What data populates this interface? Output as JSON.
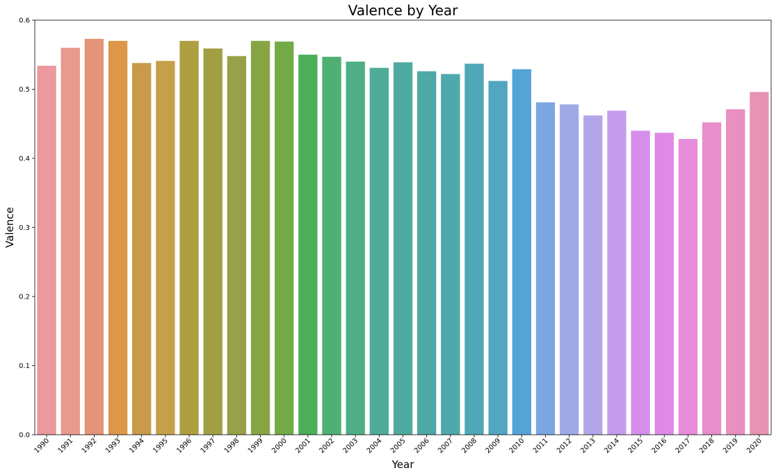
{
  "chart_data": {
    "type": "bar",
    "title": "Valence by Year",
    "xlabel": "Year",
    "ylabel": "Valence",
    "ylim": [
      0,
      0.6
    ],
    "yticks": [
      "0.0",
      "0.1",
      "0.2",
      "0.3",
      "0.4",
      "0.5",
      "0.6"
    ],
    "grid": false,
    "legend": "none",
    "categories": [
      "1990",
      "1991",
      "1992",
      "1993",
      "1994",
      "1995",
      "1996",
      "1997",
      "1998",
      "1999",
      "2000",
      "2001",
      "2002",
      "2003",
      "2004",
      "2005",
      "2006",
      "2007",
      "2008",
      "2009",
      "2010",
      "2011",
      "2012",
      "2013",
      "2014",
      "2015",
      "2016",
      "2017",
      "2018",
      "2019",
      "2020"
    ],
    "values": [
      0.534,
      0.56,
      0.573,
      0.57,
      0.538,
      0.541,
      0.57,
      0.559,
      0.548,
      0.57,
      0.569,
      0.55,
      0.547,
      0.54,
      0.531,
      0.539,
      0.526,
      0.522,
      0.537,
      0.512,
      0.529,
      0.481,
      0.478,
      0.462,
      0.469,
      0.44,
      0.437,
      0.428,
      0.452,
      0.471,
      0.496
    ],
    "colors": [
      "#eb989e",
      "#e89a8d",
      "#e59479",
      "#dc9748",
      "#c79b4a",
      "#c59f4a",
      "#ad9f40",
      "#a29e44",
      "#98a048",
      "#88a545",
      "#73ab48",
      "#4aae5a",
      "#4fb072",
      "#4eaf86",
      "#4fac98",
      "#4ea9a0",
      "#4ea8a6",
      "#4ea8ac",
      "#4fa8b5",
      "#51a6c1",
      "#55a4d8",
      "#7aa7e1",
      "#9fa9e6",
      "#b3a5e9",
      "#c59ced",
      "#d58feb",
      "#df8ae7",
      "#e78dd9",
      "#e78ecb",
      "#e890c0",
      "#e892b4"
    ]
  }
}
